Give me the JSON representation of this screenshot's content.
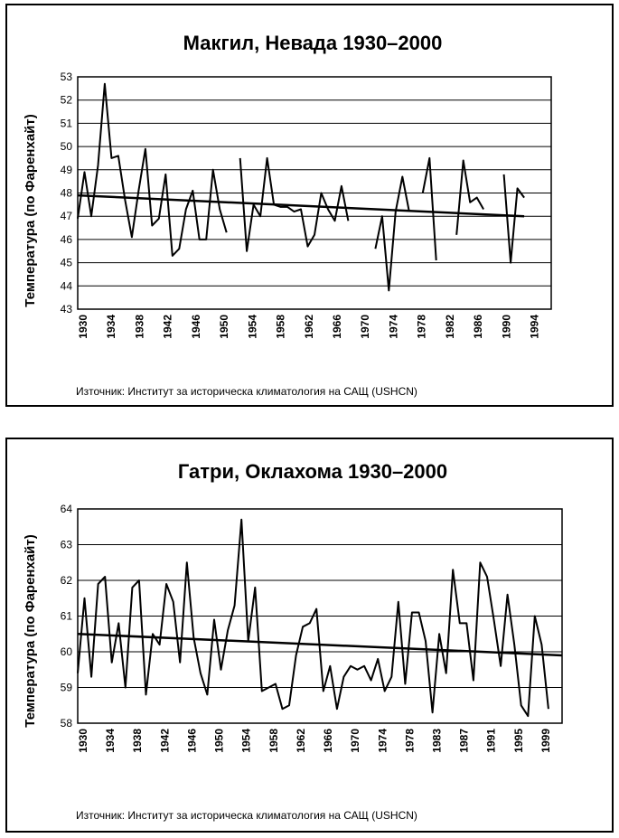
{
  "chart_data": [
    {
      "type": "line",
      "title": "Макгил, Невада 1930–2000",
      "ylabel": "Температура (по Фаренхайт)",
      "xlabel": "",
      "ylim": [
        43,
        53
      ],
      "xlim": [
        1930,
        2000
      ],
      "yticks": [
        "43",
        "44",
        "45",
        "46",
        "47",
        "48",
        "49",
        "50",
        "51",
        "52",
        "53"
      ],
      "xticks": [
        "1930",
        "1934",
        "1938",
        "1942",
        "1946",
        "1950",
        "1954",
        "1958",
        "1962",
        "1966",
        "1970",
        "1974",
        "1978",
        "1982",
        "1986",
        "1990",
        "1994"
      ],
      "grid": "horizontal",
      "source": "Източник: Институт за историческа климатология на САЩ (USHCN)",
      "series": [
        {
          "x": [
            1930,
            1931,
            1932,
            1933,
            1934,
            1935,
            1936,
            1937,
            1938,
            1939,
            1940,
            1941,
            1942,
            1943,
            1944,
            1945,
            1946,
            1947,
            1948,
            1949,
            1950,
            1951,
            1952,
            1953,
            1954,
            1955,
            1956,
            1957,
            1958,
            1959,
            1960,
            1961,
            1962,
            1963,
            1964,
            1965,
            1966,
            1967,
            1968,
            1969,
            1970,
            1971,
            1972,
            1973,
            1974,
            1975,
            1976,
            1977,
            1978,
            1979,
            1980,
            1981,
            1982,
            1983,
            1984,
            1985,
            1986,
            1987,
            1988,
            1989,
            1990,
            1991,
            1992,
            1993,
            1994,
            1995,
            1996
          ],
          "values": [
            46.9,
            48.9,
            47.0,
            49.2,
            52.7,
            49.5,
            49.6,
            47.7,
            46.1,
            48.1,
            49.9,
            46.6,
            46.9,
            48.8,
            45.3,
            45.6,
            47.3,
            48.1,
            46.0,
            46.0,
            49.0,
            47.3,
            46.3,
            null,
            49.5,
            45.5,
            47.5,
            47.0,
            49.5,
            47.5,
            47.4,
            47.4,
            47.2,
            47.3,
            45.7,
            46.2,
            48.0,
            47.3,
            46.8,
            48.3,
            46.8,
            null,
            null,
            null,
            45.6,
            47.0,
            43.8,
            47.2,
            48.7,
            47.2,
            null,
            48.0,
            49.5,
            45.1,
            null,
            null,
            46.2,
            49.4,
            47.6,
            47.8,
            47.3,
            null,
            null,
            48.8,
            45.0,
            48.2,
            47.8
          ]
        }
      ],
      "trend": {
        "x": [
          1930,
          1996
        ],
        "y": [
          47.9,
          47.0
        ]
      }
    },
    {
      "type": "line",
      "title": "Гатри, Оклахома 1930–2000",
      "ylabel": "Температура (по Фаренхайт)",
      "xlabel": "",
      "ylim": [
        58,
        64
      ],
      "xlim": [
        1930,
        2001
      ],
      "yticks": [
        "58",
        "59",
        "60",
        "61",
        "62",
        "63",
        "64"
      ],
      "xticks": [
        "1930",
        "1934",
        "1938",
        "1942",
        "1946",
        "1950",
        "1954",
        "1958",
        "1962",
        "1966",
        "1970",
        "1974",
        "1978",
        "1983",
        "1987",
        "1991",
        "1995",
        "1999"
      ],
      "grid": "horizontal",
      "source": "Източник: Институт за историческа климатология на САЩ (USHCN)",
      "series": [
        {
          "x": [
            1930,
            1931,
            1932,
            1933,
            1934,
            1935,
            1936,
            1937,
            1938,
            1939,
            1940,
            1941,
            1942,
            1943,
            1944,
            1945,
            1946,
            1947,
            1948,
            1949,
            1950,
            1951,
            1952,
            1953,
            1954,
            1955,
            1956,
            1957,
            1958,
            1959,
            1960,
            1961,
            1962,
            1963,
            1964,
            1965,
            1966,
            1967,
            1968,
            1969,
            1970,
            1971,
            1972,
            1973,
            1974,
            1975,
            1976,
            1977,
            1978,
            1979,
            1980,
            1981,
            1982,
            1983,
            1984,
            1985,
            1986,
            1987,
            1988,
            1989,
            1990,
            1991,
            1992,
            1993,
            1994,
            1995,
            1996,
            1997,
            1998,
            1999
          ],
          "values": [
            59.4,
            61.5,
            59.3,
            61.9,
            62.1,
            59.7,
            60.8,
            59.0,
            61.8,
            62.0,
            58.8,
            60.5,
            60.2,
            61.9,
            61.4,
            59.7,
            62.5,
            60.4,
            59.4,
            58.8,
            60.9,
            59.5,
            60.6,
            61.3,
            63.7,
            60.3,
            61.8,
            58.9,
            59.0,
            59.1,
            58.4,
            58.5,
            59.9,
            60.7,
            60.8,
            61.2,
            58.9,
            59.6,
            58.4,
            59.3,
            59.6,
            59.5,
            59.6,
            59.2,
            59.8,
            58.9,
            59.3,
            61.4,
            59.1,
            61.1,
            61.1,
            60.3,
            58.3,
            60.5,
            59.4,
            62.3,
            60.8,
            60.8,
            59.2,
            62.5,
            62.1,
            60.9,
            59.6,
            61.6,
            60.2,
            58.5,
            58.2,
            61.0,
            60.2,
            58.4
          ]
        }
      ],
      "trend": {
        "x": [
          1930,
          2001
        ],
        "y": [
          60.5,
          59.9
        ]
      }
    }
  ]
}
